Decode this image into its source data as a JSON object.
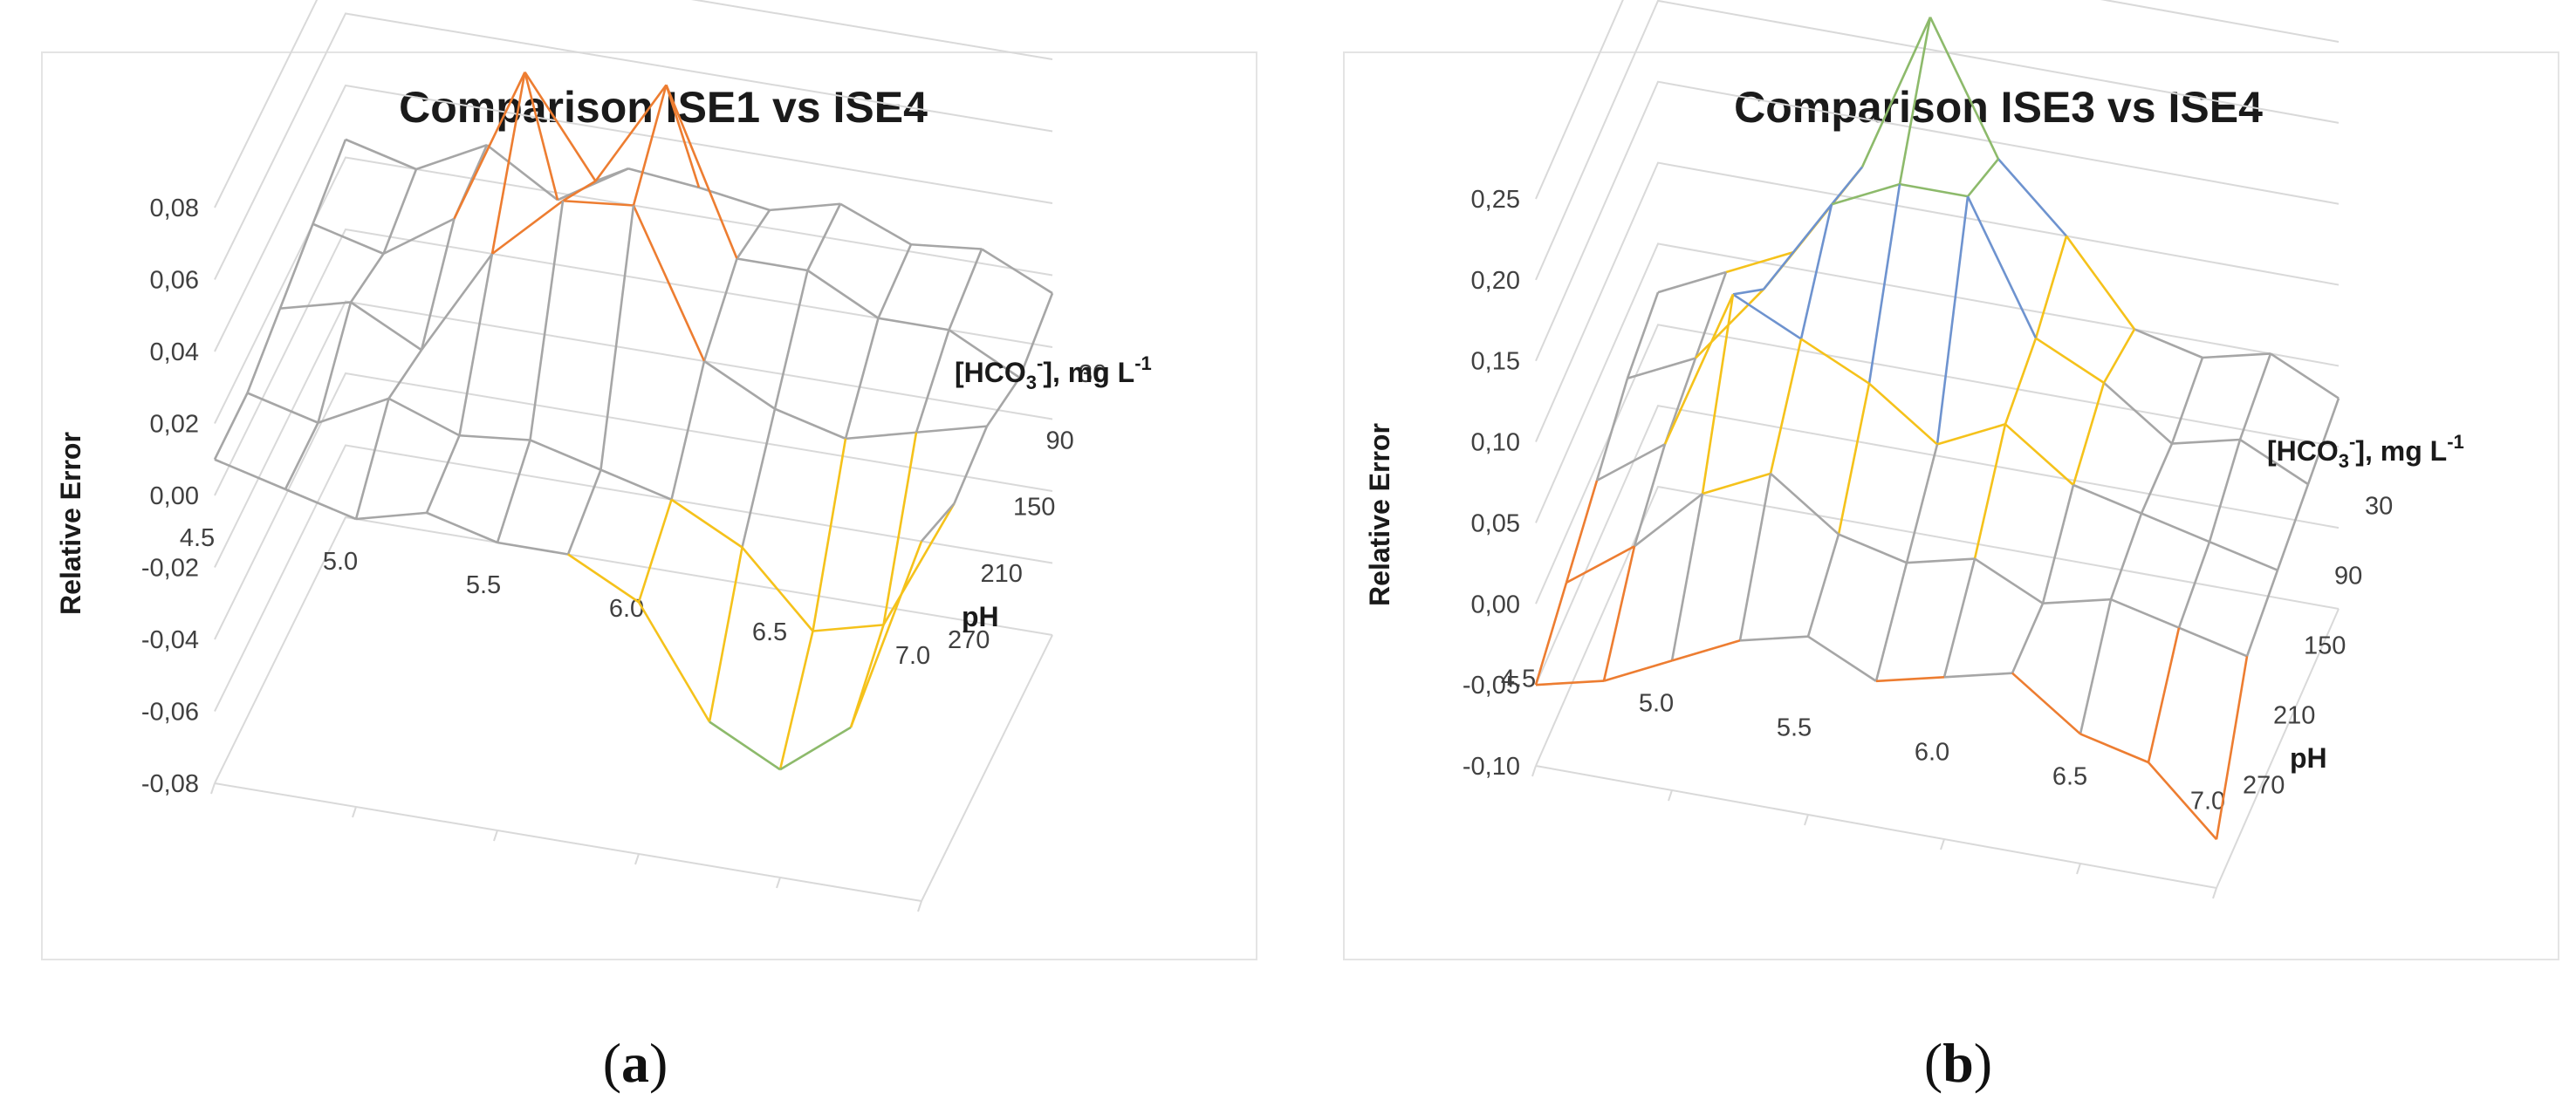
{
  "chart_data": [
    {
      "type": "surface3d-wireframe",
      "title": "Comparison  ISE1  vs  ISE4",
      "caption_letter": "a",
      "zlabel": "Relative Error",
      "xlabel": "pH",
      "ylabel_main": "[HCO",
      "ylabel_sub": "3",
      "ylabel_sup1": "-",
      "ylabel_mid": "], mg L",
      "ylabel_sup2": "-1",
      "zlim": [
        -0.08,
        0.08
      ],
      "zticks": [
        "0,08",
        "0,06",
        "0,04",
        "0,02",
        "0,00",
        "-0,02",
        "-0,04",
        "-0,06",
        "-0,08"
      ],
      "ph_ticks": [
        "4.5",
        "5.0",
        "5.5",
        "6.0",
        "6.5",
        "7.0"
      ],
      "hco3_ticks": [
        "30",
        "90",
        "150",
        "210",
        "270"
      ],
      "ph_values": [
        4.5,
        4.75,
        5.0,
        5.25,
        5.5,
        5.75,
        6.0,
        6.25,
        6.5,
        6.75,
        7.0
      ],
      "hco3_values": [
        30,
        90,
        150,
        210,
        270
      ],
      "band_colors": [
        "#6e93cf",
        "#8dba6b",
        "#f5c21b",
        "#a6a6a6",
        "#ed7d31"
      ],
      "band_edges": [
        -0.08,
        -0.04,
        0.0,
        0.04,
        0.08
      ],
      "series": [
        {
          "name": "30",
          "values": [
            0.025,
            0.02,
            0.03,
            0.018,
            0.03,
            0.028,
            0.025,
            0.03,
            0.022,
            0.024,
            0.015
          ]
        },
        {
          "name": "90",
          "values": [
            0.02,
            0.015,
            0.028,
            0.072,
            0.045,
            0.075,
            0.03,
            0.03,
            0.02,
            0.02,
            0.01
          ]
        },
        {
          "name": "150",
          "values": [
            0.015,
            0.02,
            0.01,
            0.04,
            0.058,
            0.06,
            0.02,
            0.01,
            0.005,
            0.01,
            0.015
          ]
        },
        {
          "name": "210",
          "values": [
            0.01,
            0.005,
            0.015,
            0.008,
            0.01,
            0.005,
            0.0,
            -0.01,
            -0.03,
            -0.025,
            0.012
          ]
        },
        {
          "name": "270",
          "values": [
            0.01,
            0.005,
            0.0,
            0.005,
            0.0,
            0.0,
            -0.01,
            -0.04,
            -0.05,
            -0.035,
            0.02
          ]
        }
      ]
    },
    {
      "type": "surface3d-wireframe",
      "title": "Comparison  ISE3  vs  ISE4",
      "caption_letter": "b",
      "zlabel": "Relative Error",
      "xlabel": "pH",
      "ylabel_main": "[HCO",
      "ylabel_sub": "3",
      "ylabel_sup1": "-",
      "ylabel_mid": "], mg L",
      "ylabel_sup2": "-1",
      "zlim": [
        -0.1,
        0.25
      ],
      "zticks": [
        "0,25",
        "0,20",
        "0,15",
        "0,10",
        "0,05",
        "0,00",
        "-0,05",
        "-0,10"
      ],
      "ph_ticks": [
        "4.5",
        "5.0",
        "5.5",
        "6.0",
        "6.5",
        "7.0"
      ],
      "hco3_ticks": [
        "30",
        "90",
        "150",
        "210",
        "270"
      ],
      "ph_values": [
        4.5,
        4.75,
        5.0,
        5.25,
        5.5,
        5.75,
        6.0,
        6.25,
        6.5,
        6.75,
        7.0
      ],
      "hco3_values": [
        30,
        90,
        150,
        210,
        270
      ],
      "band_colors": [
        "#6e93cf",
        "#ed7d31",
        "#a6a6a6",
        "#f5c21b",
        "#6e93cf",
        "#8dba6b"
      ],
      "band_edges": [
        -0.05,
        0.0,
        0.05,
        0.1,
        0.15
      ],
      "series": [
        {
          "name": "30",
          "values": [
            0.02,
            0.04,
            0.06,
            0.12,
            0.22,
            0.14,
            0.1,
            0.05,
            0.04,
            0.05,
            0.03
          ]
        },
        {
          "name": "90",
          "values": [
            0.01,
            0.03,
            0.08,
            0.14,
            0.16,
            0.16,
            0.08,
            0.06,
            0.03,
            0.04,
            0.02
          ]
        },
        {
          "name": "150",
          "values": [
            -0.01,
            0.02,
            0.12,
            0.1,
            0.08,
            0.05,
            0.07,
            0.04,
            0.03,
            0.02,
            0.01
          ]
        },
        {
          "name": "210",
          "values": [
            -0.03,
            0.0,
            0.04,
            0.06,
            0.03,
            0.02,
            0.03,
            0.01,
            0.02,
            0.01,
            0.0
          ]
        },
        {
          "name": "270",
          "values": [
            -0.05,
            -0.04,
            -0.02,
            0.0,
            0.01,
            -0.01,
            0.0,
            0.01,
            -0.02,
            -0.03,
            -0.07
          ]
        }
      ]
    }
  ]
}
